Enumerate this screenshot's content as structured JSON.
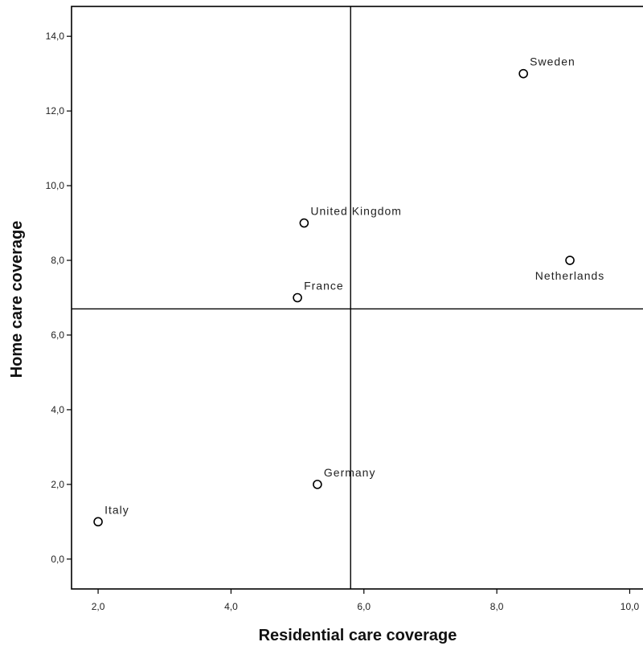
{
  "chart_data": {
    "type": "scatter",
    "xlabel": "Residential care coverage",
    "ylabel": "Home care coverage",
    "xlim": [
      1.6,
      10.2
    ],
    "ylim": [
      -0.8,
      14.8
    ],
    "x_ticks": [
      {
        "value": 2,
        "label": "2,0"
      },
      {
        "value": 4,
        "label": "4,0"
      },
      {
        "value": 6,
        "label": "6,0"
      },
      {
        "value": 8,
        "label": "8,0"
      },
      {
        "value": 10,
        "label": "10,0"
      }
    ],
    "y_ticks": [
      {
        "value": 0,
        "label": "0,0"
      },
      {
        "value": 2,
        "label": "2,0"
      },
      {
        "value": 4,
        "label": "4,0"
      },
      {
        "value": 6,
        "label": "6,0"
      },
      {
        "value": 8,
        "label": "8,0"
      },
      {
        "value": 10,
        "label": "10,0"
      },
      {
        "value": 12,
        "label": "12,0"
      },
      {
        "value": 14,
        "label": "14,0"
      }
    ],
    "reference_lines": {
      "x": 5.8,
      "y": 6.7
    },
    "points": [
      {
        "label": "Sweden",
        "x": 8.4,
        "y": 13.0,
        "label_position": "above-right"
      },
      {
        "label": "United Kingdom",
        "x": 5.1,
        "y": 9.0,
        "label_position": "above-right"
      },
      {
        "label": "Netherlands",
        "x": 9.1,
        "y": 8.0,
        "label_position": "below"
      },
      {
        "label": "France",
        "x": 5.0,
        "y": 7.0,
        "label_position": "above-right"
      },
      {
        "label": "Germany",
        "x": 5.3,
        "y": 2.0,
        "label_position": "above-right"
      },
      {
        "label": "Italy",
        "x": 2.0,
        "y": 1.0,
        "label_position": "above-right"
      }
    ],
    "grid": false,
    "marker": "open-circle"
  }
}
